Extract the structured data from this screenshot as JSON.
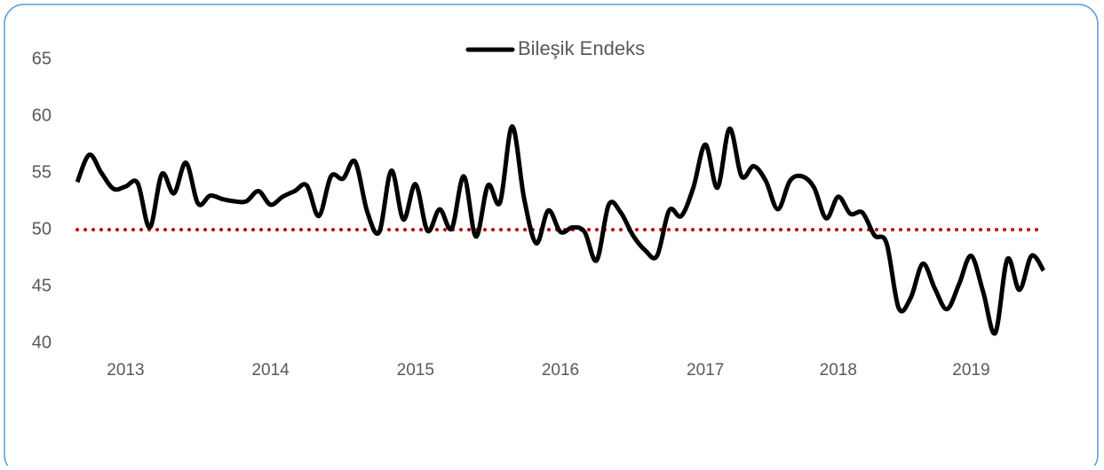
{
  "chart_data": {
    "type": "line",
    "categories": [
      null,
      null,
      null,
      null,
      "2013",
      null,
      null,
      null,
      null,
      null,
      null,
      null,
      null,
      null,
      null,
      null,
      "2014",
      null,
      null,
      null,
      null,
      null,
      null,
      null,
      null,
      null,
      null,
      null,
      "2015",
      null,
      null,
      null,
      null,
      null,
      null,
      null,
      null,
      null,
      null,
      null,
      "2016",
      null,
      null,
      null,
      null,
      null,
      null,
      null,
      null,
      null,
      null,
      null,
      "2017",
      null,
      null,
      null,
      null,
      null,
      null,
      null,
      null,
      null,
      null,
      "2018",
      null,
      null,
      null,
      null,
      null,
      null,
      null,
      null,
      null,
      null,
      "2019",
      null,
      null,
      null,
      null,
      null,
      null
    ],
    "series": [
      {
        "name": "Bileşik Endeks",
        "color": "#000000",
        "values": [
          54.2,
          56.6,
          55,
          53.6,
          53.8,
          54.1,
          50.2,
          54.9,
          53.2,
          55.9,
          52.3,
          53,
          52.7,
          52.5,
          52.5,
          53.4,
          52.2,
          52.9,
          53.4,
          53.9,
          51.2,
          54.7,
          54.5,
          56,
          51.6,
          49.8,
          55.2,
          50.9,
          54,
          49.9,
          51.8,
          50.1,
          54.7,
          49.4,
          53.9,
          52.4,
          59.1,
          52.7,
          48.8,
          51.7,
          49.8,
          50.2,
          49.8,
          47.3,
          52.2,
          51.5,
          49.5,
          48.2,
          47.7,
          51.7,
          51.2,
          53.7,
          57.5,
          53.7,
          58.9,
          54.7,
          55.6,
          54.3,
          51.8,
          54.3,
          54.7,
          53.7,
          51,
          52.9,
          51.4,
          51.5,
          49.5,
          48.8,
          43.1,
          44,
          47,
          44.8,
          43,
          45.2,
          47.7,
          44.5,
          40.9,
          47.4,
          44.7,
          47.7,
          46.4
        ]
      }
    ],
    "reference_line": {
      "value": 50,
      "color": "#c00000"
    },
    "ylim": [
      40,
      65
    ],
    "yticks": [
      40,
      45,
      50,
      55,
      60,
      65
    ],
    "grid": false,
    "legend": "top"
  }
}
